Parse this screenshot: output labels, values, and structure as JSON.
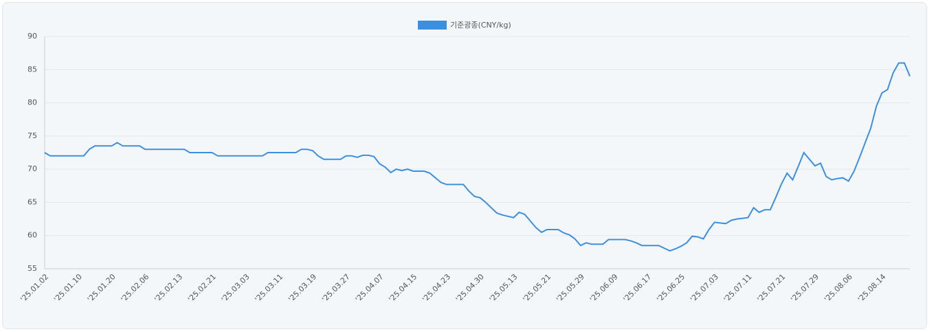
{
  "chart_data": {
    "type": "line",
    "categories": [
      "'25.01.02",
      null,
      null,
      null,
      null,
      null,
      "'25.01.10",
      null,
      null,
      null,
      null,
      null,
      "'25.01.20",
      null,
      null,
      null,
      null,
      null,
      "'25.02.06",
      null,
      null,
      null,
      null,
      null,
      "'25.02.13",
      null,
      null,
      null,
      null,
      null,
      "'25.02.21",
      null,
      null,
      null,
      null,
      null,
      "'25.03.03",
      null,
      null,
      null,
      null,
      null,
      "'25.03.11",
      null,
      null,
      null,
      null,
      null,
      "'25.03.19",
      null,
      null,
      null,
      null,
      null,
      "'25.03.27",
      null,
      null,
      null,
      null,
      null,
      "'25.04.07",
      null,
      null,
      null,
      null,
      null,
      "'25.04.15",
      null,
      null,
      null,
      null,
      null,
      "'25.04.23",
      null,
      null,
      null,
      null,
      null,
      "'25.04.30",
      null,
      null,
      null,
      null,
      null,
      "'25.05.13",
      null,
      null,
      null,
      null,
      null,
      "'25.05.21",
      null,
      null,
      null,
      null,
      null,
      "'25.05.29",
      null,
      null,
      null,
      null,
      null,
      "'25.06.09",
      null,
      null,
      null,
      null,
      null,
      "'25.06.17",
      null,
      null,
      null,
      null,
      null,
      "'25.06.25",
      null,
      null,
      null,
      null,
      null,
      "'25.07.03",
      null,
      null,
      null,
      null,
      null,
      "'25.07.11",
      null,
      null,
      null,
      null,
      null,
      "'25.07.21",
      null,
      null,
      null,
      null,
      null,
      "'25.07.29",
      null,
      null,
      null,
      null,
      null,
      "'25.08.06",
      null,
      null,
      null,
      null,
      null,
      "'25.08.14",
      null,
      null,
      null,
      null,
      null
    ],
    "series": [
      {
        "name": "기준광종(CNY/kg)",
        "color": "#3a8fe0",
        "values": [
          72.5,
          72,
          72,
          72,
          72,
          72,
          72,
          72,
          73,
          73.5,
          73.5,
          73.5,
          73.5,
          74,
          73.5,
          73.5,
          73.5,
          73.5,
          73,
          73,
          73,
          73,
          73,
          73,
          73,
          73,
          72.5,
          72.5,
          72.5,
          72.5,
          72.5,
          72,
          72,
          72,
          72,
          72,
          72,
          72,
          72,
          72,
          72.5,
          72.5,
          72.5,
          72.5,
          72.5,
          72.5,
          73,
          73,
          72.8,
          72,
          71.5,
          71.5,
          71.5,
          71.5,
          72,
          72,
          71.8,
          72.1,
          72.1,
          71.9,
          70.8,
          70.3,
          69.5,
          70,
          69.8,
          70,
          69.7,
          69.7,
          69.7,
          69.4,
          68.7,
          68,
          67.7,
          67.7,
          67.7,
          67.7,
          66.7,
          65.9,
          65.7,
          65,
          64.2,
          63.4,
          63.1,
          62.9,
          62.7,
          63.5,
          63.2,
          62.2,
          61.2,
          60.5,
          60.9,
          60.9,
          60.9,
          60.4,
          60.1,
          59.5,
          58.5,
          58.9,
          58.7,
          58.7,
          58.7,
          59.4,
          59.4,
          59.4,
          59.4,
          59.2,
          58.9,
          58.5,
          58.5,
          58.5,
          58.5,
          58.1,
          57.7,
          58,
          58.4,
          58.9,
          59.9,
          59.8,
          59.5,
          60.9,
          62,
          61.9,
          61.8,
          62.3,
          62.5,
          62.6,
          62.7,
          64.2,
          63.5,
          63.9,
          63.9,
          65.8,
          67.8,
          69.4,
          68.4,
          70.4,
          72.5,
          71.5,
          70.5,
          70.9,
          68.9,
          68.4,
          68.6,
          68.7,
          68.2,
          69.7,
          71.8,
          74,
          76.2,
          79.5,
          81.5,
          82,
          84.5,
          86,
          86,
          84
        ]
      }
    ],
    "ylim": [
      55,
      90
    ],
    "yticks": [
      55,
      60,
      65,
      70,
      75,
      80,
      85,
      90
    ],
    "grid": true,
    "legend": "top"
  }
}
